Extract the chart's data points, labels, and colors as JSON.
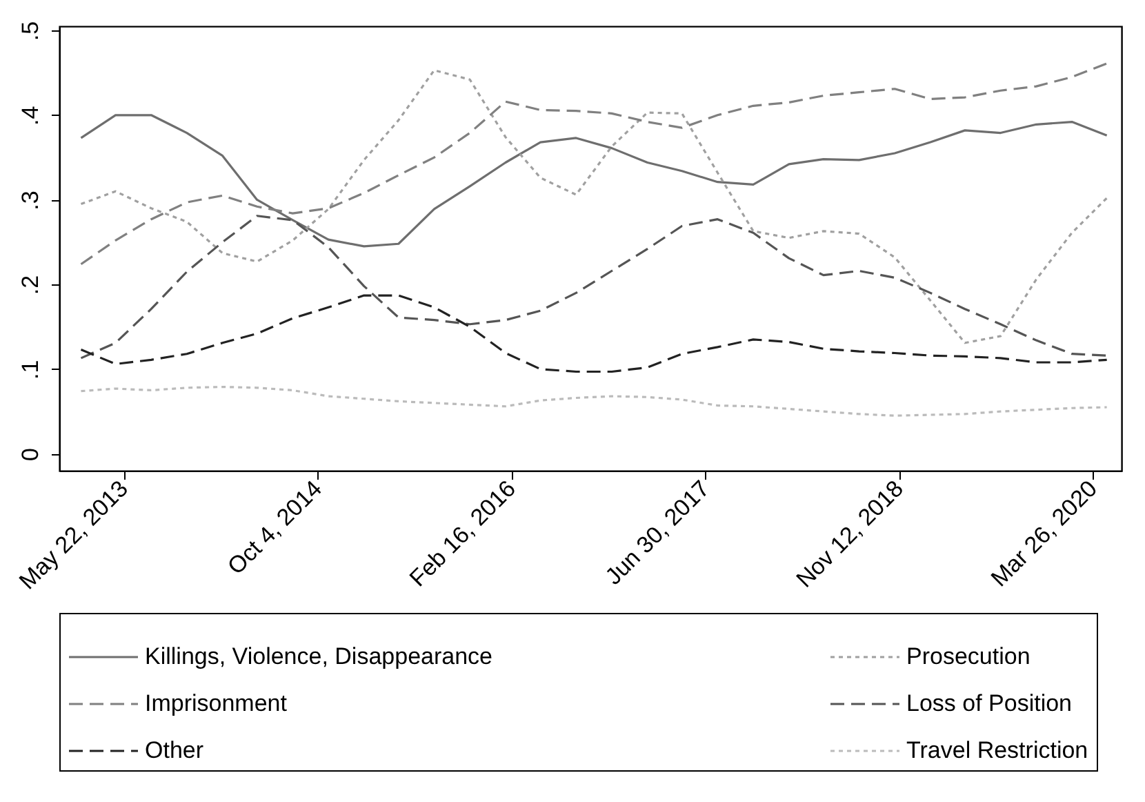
{
  "chart_data": {
    "type": "line",
    "x": [
      "2013-02-01",
      "2013-05-01",
      "2013-08-01",
      "2013-11-01",
      "2014-02-01",
      "2014-05-01",
      "2014-08-01",
      "2014-11-01",
      "2015-02-01",
      "2015-05-01",
      "2015-08-01",
      "2015-11-01",
      "2016-02-01",
      "2016-05-01",
      "2016-08-01",
      "2016-11-01",
      "2017-02-01",
      "2017-05-01",
      "2017-08-01",
      "2017-11-01",
      "2018-02-01",
      "2018-05-01",
      "2018-08-01",
      "2018-11-01",
      "2019-02-01",
      "2019-05-01",
      "2019-08-01",
      "2019-11-01",
      "2020-02-01",
      "2020-05-01"
    ],
    "series": [
      {
        "name": "Killings, Violence, Disappearance",
        "color": "#6e6e6e",
        "line_style": "solid",
        "values": [
          0.373,
          0.4,
          0.4,
          0.379,
          0.352,
          0.3,
          0.276,
          0.253,
          0.245,
          0.248,
          0.289,
          0.316,
          0.344,
          0.368,
          0.373,
          0.361,
          0.344,
          0.334,
          0.321,
          0.318,
          0.342,
          0.348,
          0.347,
          0.355,
          0.368,
          0.382,
          0.379,
          0.389,
          0.392,
          0.376
        ]
      },
      {
        "name": "Prosecution",
        "color": "#a0a0a0",
        "line_style": "dotted",
        "values": [
          0.295,
          0.31,
          0.29,
          0.274,
          0.237,
          0.227,
          0.252,
          0.289,
          0.347,
          0.394,
          0.453,
          0.442,
          0.374,
          0.326,
          0.306,
          0.363,
          0.403,
          0.402,
          0.332,
          0.263,
          0.255,
          0.263,
          0.26,
          0.232,
          0.181,
          0.131,
          0.139,
          0.206,
          0.261,
          0.302
        ]
      },
      {
        "name": "Imprisonment",
        "color": "#808080",
        "line_style": "dashed",
        "values": [
          0.224,
          0.252,
          0.277,
          0.297,
          0.305,
          0.292,
          0.284,
          0.29,
          0.308,
          0.329,
          0.35,
          0.379,
          0.416,
          0.406,
          0.405,
          0.402,
          0.392,
          0.385,
          0.4,
          0.411,
          0.415,
          0.423,
          0.427,
          0.431,
          0.419,
          0.421,
          0.429,
          0.434,
          0.445,
          0.461
        ]
      },
      {
        "name": "Loss of Position",
        "color": "#555555",
        "line_style": "dashed",
        "values": [
          0.113,
          0.131,
          0.171,
          0.215,
          0.25,
          0.281,
          0.276,
          0.244,
          0.198,
          0.161,
          0.158,
          0.153,
          0.158,
          0.169,
          0.19,
          0.216,
          0.242,
          0.269,
          0.277,
          0.261,
          0.231,
          0.211,
          0.216,
          0.208,
          0.19,
          0.171,
          0.153,
          0.134,
          0.118,
          0.116
        ]
      },
      {
        "name": "Other",
        "color": "#222222",
        "line_style": "dashed",
        "values": [
          0.123,
          0.106,
          0.111,
          0.118,
          0.131,
          0.142,
          0.16,
          0.173,
          0.187,
          0.187,
          0.173,
          0.15,
          0.119,
          0.1,
          0.097,
          0.097,
          0.102,
          0.118,
          0.126,
          0.135,
          0.132,
          0.124,
          0.121,
          0.119,
          0.116,
          0.115,
          0.113,
          0.108,
          0.108,
          0.111
        ]
      },
      {
        "name": "Travel Restriction",
        "color": "#bbbbbb",
        "line_style": "dotted",
        "values": [
          0.074,
          0.077,
          0.075,
          0.078,
          0.079,
          0.078,
          0.075,
          0.068,
          0.065,
          0.062,
          0.06,
          0.058,
          0.056,
          0.063,
          0.066,
          0.068,
          0.067,
          0.064,
          0.057,
          0.056,
          0.053,
          0.05,
          0.047,
          0.045,
          0.046,
          0.047,
          0.05,
          0.052,
          0.054,
          0.055
        ]
      }
    ],
    "xlim": [
      "2012-12-07",
      "2020-06-08"
    ],
    "xticks": [
      {
        "value": "2013-05-22",
        "label": "May 22, 2013"
      },
      {
        "value": "2014-10-04",
        "label": "Oct 4, 2014"
      },
      {
        "value": "2016-02-16",
        "label": "Feb 16, 2016"
      },
      {
        "value": "2017-06-30",
        "label": "Jun 30, 2017"
      },
      {
        "value": "2018-11-12",
        "label": "Nov 12, 2018"
      },
      {
        "value": "2020-03-26",
        "label": "Mar 26, 2020"
      }
    ],
    "ylim": [
      -0.02,
      0.505
    ],
    "yticks": [
      {
        "value": 0,
        "label": "0"
      },
      {
        "value": 0.1,
        "label": ".1"
      },
      {
        "value": 0.2,
        "label": ".2"
      },
      {
        "value": 0.3,
        "label": ".3"
      },
      {
        "value": 0.4,
        "label": ".4"
      },
      {
        "value": 0.5,
        "label": ".5"
      }
    ],
    "grid": false,
    "legend": "bottom"
  }
}
